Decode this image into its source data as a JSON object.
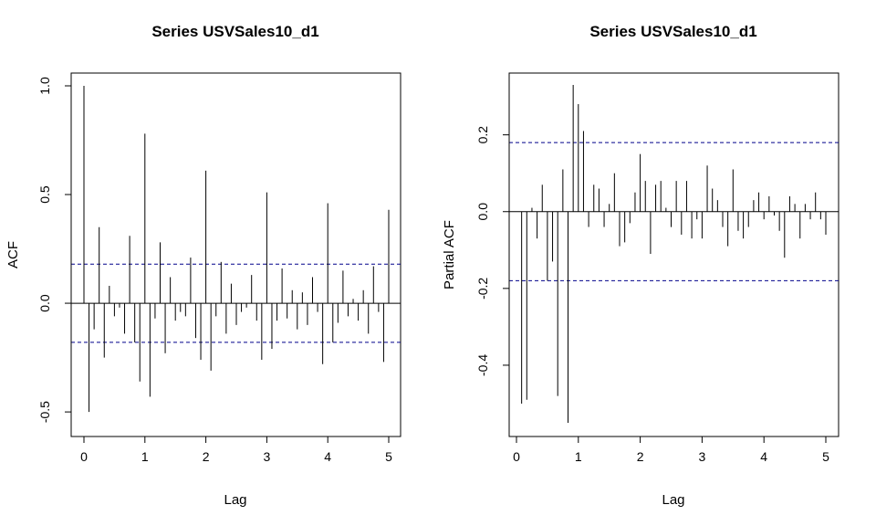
{
  "chart_data": [
    {
      "type": "bar",
      "subtype": "acf-correlogram",
      "title": "Series  USVSales10_d1",
      "xlabel": "Lag",
      "ylabel": "ACF",
      "xlim": [
        0,
        5
      ],
      "ylim": [
        -0.55,
        1.0
      ],
      "x_ticks": [
        0,
        1,
        2,
        3,
        4,
        5
      ],
      "y_ticks": [
        -0.5,
        0.0,
        0.5,
        1.0
      ],
      "x_tick_labels": [
        "0",
        "1",
        "2",
        "3",
        "4",
        "5"
      ],
      "y_tick_labels": [
        "-0.5",
        "0.0",
        "0.5",
        "1.0"
      ],
      "confidence_bound": 0.18,
      "confidence_color": "#00008b",
      "grid": false,
      "lags": [
        0,
        0.0833,
        0.1667,
        0.25,
        0.3333,
        0.4167,
        0.5,
        0.5833,
        0.6667,
        0.75,
        0.8333,
        0.9167,
        1.0,
        1.0833,
        1.1667,
        1.25,
        1.3333,
        1.4167,
        1.5,
        1.5833,
        1.6667,
        1.75,
        1.8333,
        1.9167,
        2.0,
        2.0833,
        2.1667,
        2.25,
        2.3333,
        2.4167,
        2.5,
        2.5833,
        2.6667,
        2.75,
        2.8333,
        2.9167,
        3.0,
        3.0833,
        3.1667,
        3.25,
        3.3333,
        3.4167,
        3.5,
        3.5833,
        3.6667,
        3.75,
        3.8333,
        3.9167,
        4.0,
        4.0833,
        4.1667,
        4.25,
        4.3333,
        4.4167,
        4.5,
        4.5833,
        4.6667,
        4.75,
        4.8333,
        4.9167,
        5.0
      ],
      "values": [
        1.0,
        -0.5,
        -0.12,
        0.35,
        -0.25,
        0.08,
        -0.06,
        -0.02,
        -0.14,
        0.31,
        -0.18,
        -0.36,
        0.78,
        -0.43,
        -0.07,
        0.28,
        -0.23,
        0.12,
        -0.08,
        -0.04,
        -0.06,
        0.21,
        -0.16,
        -0.26,
        0.61,
        -0.31,
        -0.06,
        0.19,
        -0.14,
        0.09,
        -0.1,
        -0.04,
        -0.02,
        0.13,
        -0.08,
        -0.26,
        0.51,
        -0.21,
        -0.08,
        0.16,
        -0.07,
        0.06,
        -0.12,
        0.05,
        -0.1,
        0.12,
        -0.04,
        -0.28,
        0.46,
        -0.18,
        -0.09,
        0.15,
        -0.06,
        0.02,
        -0.08,
        0.06,
        -0.14,
        0.17,
        -0.04,
        -0.27,
        0.43
      ]
    },
    {
      "type": "bar",
      "subtype": "pacf-correlogram",
      "title": "Series  USVSales10_d1",
      "xlabel": "Lag",
      "ylabel": "Partial ACF",
      "xlim": [
        0,
        5
      ],
      "ylim": [
        -0.55,
        0.33
      ],
      "x_ticks": [
        0,
        1,
        2,
        3,
        4,
        5
      ],
      "y_ticks": [
        -0.4,
        -0.2,
        0.0,
        0.2
      ],
      "x_tick_labels": [
        "0",
        "1",
        "2",
        "3",
        "4",
        "5"
      ],
      "y_tick_labels": [
        "-0.4",
        "-0.2",
        "0.0",
        "0.2"
      ],
      "confidence_bound": 0.18,
      "confidence_color": "#00008b",
      "grid": false,
      "lags": [
        0.0833,
        0.1667,
        0.25,
        0.3333,
        0.4167,
        0.5,
        0.5833,
        0.6667,
        0.75,
        0.8333,
        0.9167,
        1.0,
        1.0833,
        1.1667,
        1.25,
        1.3333,
        1.4167,
        1.5,
        1.5833,
        1.6667,
        1.75,
        1.8333,
        1.9167,
        2.0,
        2.0833,
        2.1667,
        2.25,
        2.3333,
        2.4167,
        2.5,
        2.5833,
        2.6667,
        2.75,
        2.8333,
        2.9167,
        3.0,
        3.0833,
        3.1667,
        3.25,
        3.3333,
        3.4167,
        3.5,
        3.5833,
        3.6667,
        3.75,
        3.8333,
        3.9167,
        4.0,
        4.0833,
        4.1667,
        4.25,
        4.3333,
        4.4167,
        4.5,
        4.5833,
        4.6667,
        4.75,
        4.8333,
        4.9167,
        5.0
      ],
      "values": [
        -0.5,
        -0.49,
        0.01,
        -0.07,
        0.07,
        -0.18,
        -0.13,
        -0.48,
        0.11,
        -0.55,
        0.33,
        0.28,
        0.21,
        -0.04,
        0.07,
        0.06,
        -0.04,
        0.02,
        0.1,
        -0.09,
        -0.08,
        -0.03,
        0.05,
        0.15,
        0.08,
        -0.11,
        0.07,
        0.08,
        0.01,
        -0.04,
        0.08,
        -0.06,
        0.08,
        -0.07,
        -0.02,
        -0.07,
        0.12,
        0.06,
        0.03,
        -0.04,
        -0.09,
        0.11,
        -0.05,
        -0.07,
        -0.04,
        0.03,
        0.05,
        -0.02,
        0.04,
        -0.01,
        -0.05,
        -0.12,
        0.04,
        0.02,
        -0.07,
        0.02,
        -0.02,
        0.05,
        -0.02,
        -0.06
      ]
    }
  ]
}
